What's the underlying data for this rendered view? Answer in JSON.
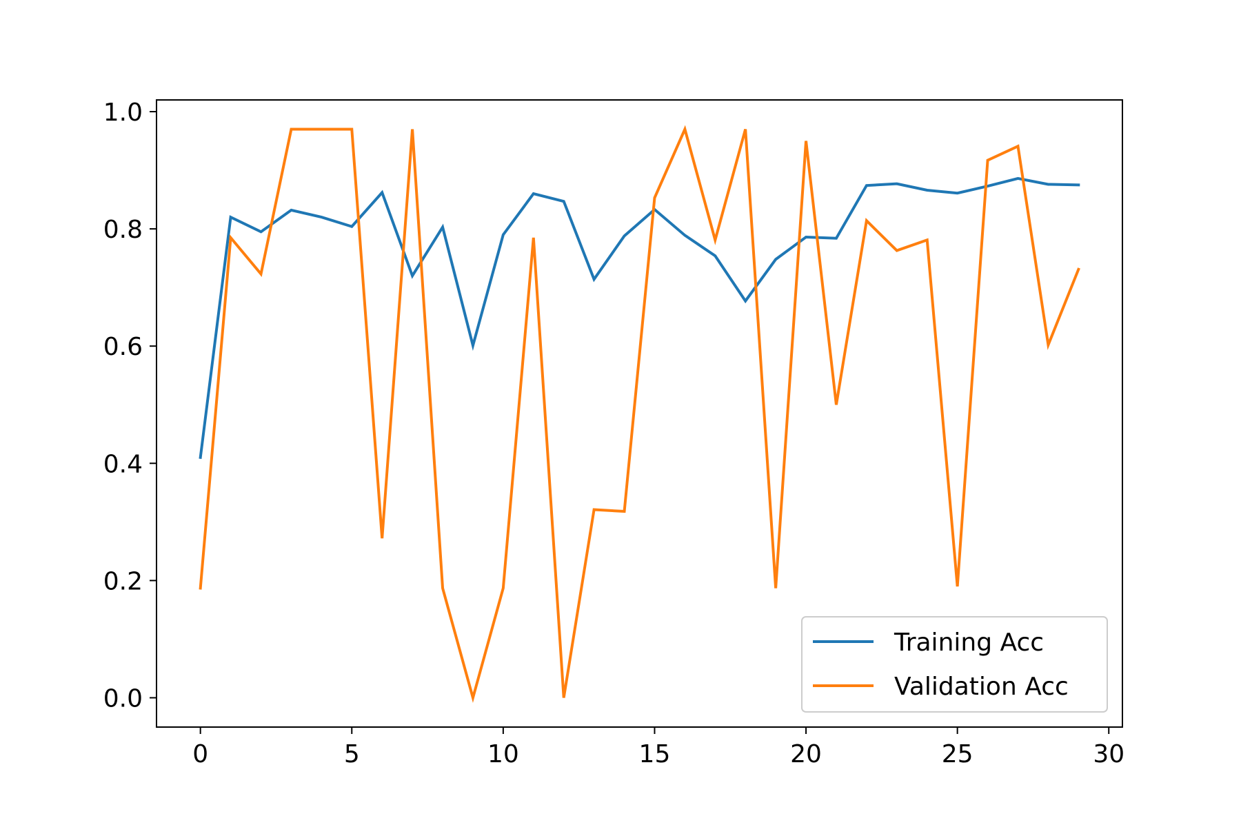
{
  "chart_data": {
    "type": "line",
    "title": "",
    "xlabel": "",
    "ylabel": "",
    "xlim": [
      -1.45,
      30.45
    ],
    "ylim": [
      -0.05,
      1.02
    ],
    "xticks": [
      0,
      5,
      10,
      15,
      20,
      25,
      30
    ],
    "yticks": [
      0.0,
      0.2,
      0.4,
      0.6,
      0.8,
      1.0
    ],
    "xtick_labels": [
      "0",
      "5",
      "10",
      "15",
      "20",
      "25",
      "30"
    ],
    "ytick_labels": [
      "0.0",
      "0.2",
      "0.4",
      "0.6",
      "0.8",
      "1.0"
    ],
    "grid": false,
    "legend_position": "lower-right",
    "x": [
      0,
      1,
      2,
      3,
      4,
      5,
      6,
      7,
      8,
      9,
      10,
      11,
      12,
      13,
      14,
      15,
      16,
      17,
      18,
      19,
      20,
      21,
      22,
      23,
      24,
      25,
      26,
      27,
      28,
      29
    ],
    "series": [
      {
        "name": "Training Acc",
        "color": "#1f77b4",
        "values": [
          0.41,
          0.82,
          0.795,
          0.832,
          0.82,
          0.804,
          0.862,
          0.72,
          0.803,
          0.601,
          0.79,
          0.86,
          0.847,
          0.714,
          0.788,
          0.833,
          0.789,
          0.754,
          0.677,
          0.748,
          0.786,
          0.784,
          0.874,
          0.877,
          0.866,
          0.861,
          0.873,
          0.886,
          0.876,
          0.875
        ]
      },
      {
        "name": "Validation Acc",
        "color": "#ff7f0e",
        "values": [
          0.187,
          0.785,
          0.723,
          0.97,
          0.97,
          0.97,
          0.272,
          0.97,
          0.187,
          0.0,
          0.187,
          0.785,
          0.0,
          0.321,
          0.318,
          0.853,
          0.97,
          0.781,
          0.97,
          0.187,
          0.95,
          0.5,
          0.814,
          0.763,
          0.781,
          0.19,
          0.917,
          0.941,
          0.602,
          0.731
        ]
      }
    ]
  }
}
